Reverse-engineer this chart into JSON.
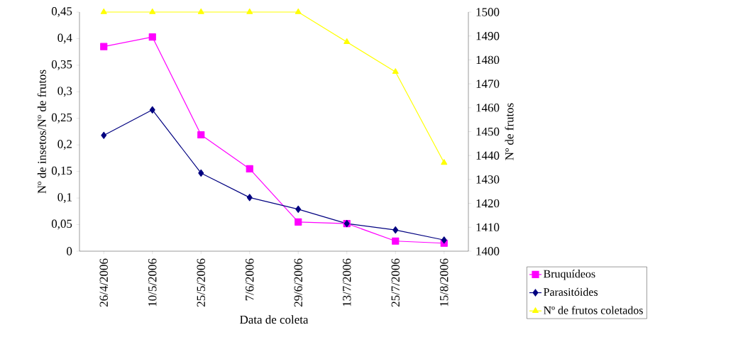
{
  "chart_data": {
    "type": "line",
    "xlabel": "Data de coleta",
    "ylabel": "Nº de insetos/Nº de frutos",
    "y2label": "Nº de frutos",
    "categories": [
      "26/4/2006",
      "10/5/2006",
      "25/5/2006",
      "7/6/2006",
      "29/6/2006",
      "13/7/2006",
      "25/7/2006",
      "15/8/2006"
    ],
    "series": [
      {
        "name": "Bruquídeos",
        "color": "#ff00ff",
        "marker": "square",
        "values": [
          0.385,
          0.403,
          0.219,
          0.155,
          0.055,
          0.052,
          0.019,
          0.015
        ]
      },
      {
        "name": "Parasitóides",
        "color": "#000080",
        "marker": "diamond",
        "values": [
          0.218,
          0.266,
          0.147,
          0.101,
          0.079,
          0.052,
          0.04,
          0.021
        ]
      },
      {
        "name": "Nº de frutos coletados",
        "color": "#ffff00",
        "marker": "triangle",
        "axis": "y2",
        "values": [
          1500,
          1500,
          1500,
          1500,
          1500,
          1487.5,
          1475,
          1437
        ]
      }
    ],
    "ylim": [
      0,
      0.45
    ],
    "yticks": [
      0,
      {
        "value": 0.05,
        "label": "0,05"
      },
      {
        "value": 0.1,
        "label": "0,1"
      },
      {
        "value": 0.15,
        "label": "0,15"
      },
      {
        "value": 0.2,
        "label": "0,2"
      },
      {
        "value": 0.25,
        "label": "0,25"
      },
      {
        "value": 0.3,
        "label": "0,3"
      },
      {
        "value": 0.35,
        "label": "0,35"
      },
      {
        "value": 0.4,
        "label": "0,4"
      },
      {
        "value": 0.45,
        "label": "0,45"
      }
    ],
    "y2lim": [
      1400,
      1500
    ],
    "y2ticks": [
      1400,
      1410,
      1420,
      1430,
      1440,
      1450,
      1460,
      1470,
      1480,
      1490,
      1500
    ],
    "legend": "bottom right",
    "line_style": "solid",
    "grid": false
  }
}
